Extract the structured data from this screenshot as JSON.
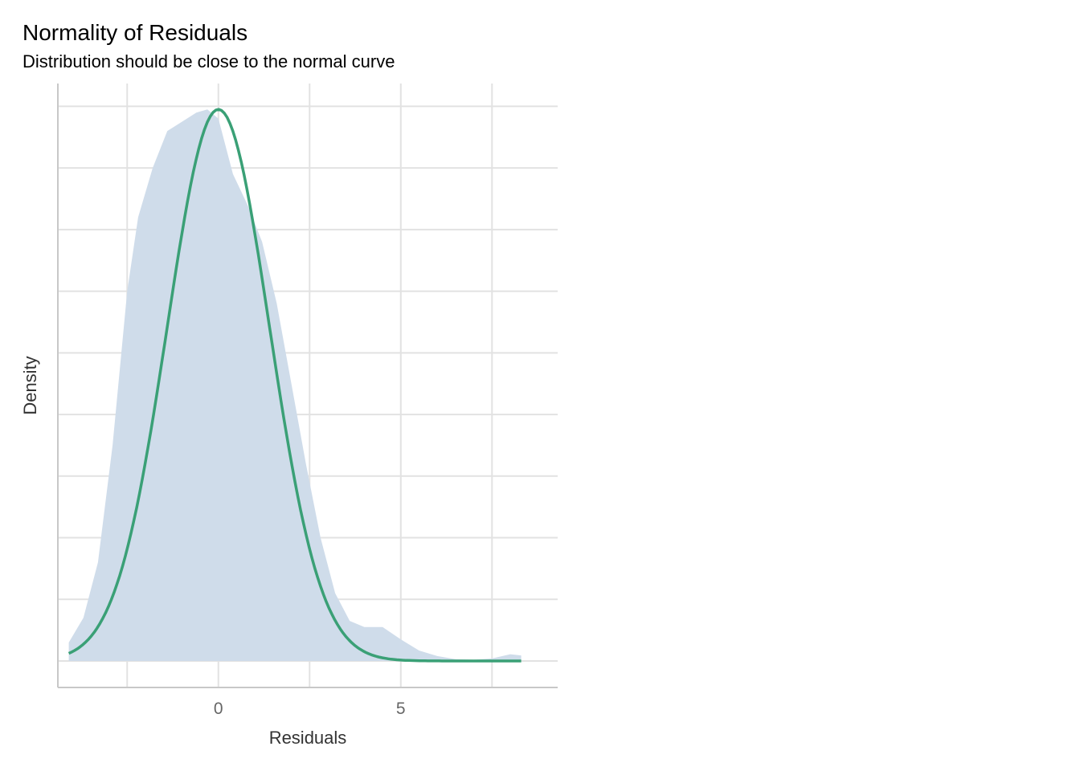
{
  "chart_data": {
    "type": "area",
    "title": "Normality of Residuals",
    "subtitle": "Distribution should be close to the normal curve",
    "xlabel": "Residuals",
    "ylabel": "Density",
    "xlim": [
      -4.4,
      9.3
    ],
    "ylim": [
      -0.0043,
      0.0937
    ],
    "x_ticks": [
      -2.5,
      0,
      2.5,
      5,
      7.5
    ],
    "x_tick_labels": [
      "",
      "0",
      "",
      "5",
      ""
    ],
    "y_ticks": [
      0,
      0.01,
      0.02,
      0.03,
      0.04,
      0.05,
      0.06,
      0.07,
      0.08,
      0.09
    ],
    "grid": true,
    "series": [
      {
        "kind": "density",
        "color": "#cfdcea",
        "x": [
          -4.1,
          -3.7,
          -3.3,
          -2.9,
          -2.5,
          -2.2,
          -1.8,
          -1.4,
          -1.0,
          -0.6,
          -0.3,
          0.0,
          0.4,
          0.8,
          1.2,
          1.6,
          2.0,
          2.4,
          2.8,
          3.2,
          3.6,
          4.0,
          4.5,
          5.0,
          5.5,
          6.0,
          6.5,
          7.0,
          7.5,
          8.0,
          8.3
        ],
        "y": [
          0.003,
          0.007,
          0.016,
          0.035,
          0.06,
          0.072,
          0.08,
          0.086,
          0.0875,
          0.089,
          0.0895,
          0.088,
          0.079,
          0.074,
          0.068,
          0.058,
          0.045,
          0.032,
          0.02,
          0.011,
          0.0065,
          0.0055,
          0.0055,
          0.0035,
          0.0017,
          0.0008,
          0.0003,
          0.0002,
          0.0004,
          0.0011,
          0.0009
        ]
      },
      {
        "kind": "normal-curve",
        "color": "#3aa076",
        "mean": 0.0,
        "sd": 1.4,
        "peak": 0.0895,
        "x_range": [
          -4.1,
          8.3
        ]
      }
    ]
  }
}
